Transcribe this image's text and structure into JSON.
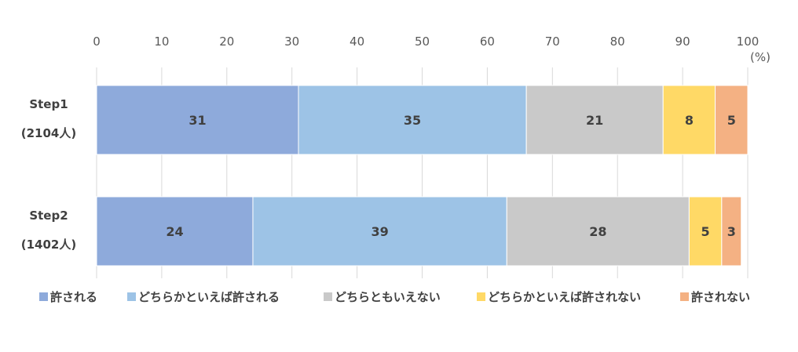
{
  "chart_data": {
    "type": "bar",
    "orientation": "horizontal",
    "stacked": true,
    "unit": "(%)",
    "xlim": [
      0,
      100
    ],
    "xticks": [
      "0",
      "10",
      "20",
      "30",
      "40",
      "50",
      "60",
      "70",
      "80",
      "90",
      "100"
    ],
    "grid": true,
    "legend_position": "bottom",
    "categories": [
      {
        "line1": "Step1",
        "line2": "(2104人)"
      },
      {
        "line1": "Step2",
        "line2": "(1402人)"
      }
    ],
    "series": [
      {
        "name": "許される",
        "color": "#8eaadb",
        "values": [
          31,
          24
        ]
      },
      {
        "name": "どちらかといえば許される",
        "color": "#9dc3e6",
        "values": [
          35,
          39
        ]
      },
      {
        "name": "どちらともいえない",
        "color": "#c9c9c9",
        "values": [
          21,
          28
        ]
      },
      {
        "name": "どちらかといえば許されない",
        "color": "#ffd966",
        "values": [
          8,
          5
        ]
      },
      {
        "name": "許されない",
        "color": "#f4b183",
        "values": [
          5,
          3
        ]
      }
    ]
  }
}
